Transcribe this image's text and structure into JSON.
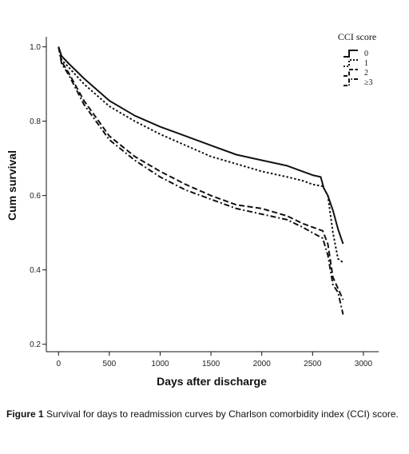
{
  "chart_data": {
    "type": "line",
    "xlabel": "Days after discharge",
    "ylabel": "Cum survival",
    "xlim": [
      -120,
      3150
    ],
    "ylim": [
      0.18,
      1.04
    ],
    "xticks": [
      0,
      500,
      1000,
      1500,
      2000,
      2500,
      3000
    ],
    "yticks": [
      0.2,
      0.4,
      0.6,
      0.8,
      1.0
    ],
    "xtick_labels": [
      "0",
      "500",
      "1000",
      "1500",
      "2000",
      "2500",
      "3000"
    ],
    "ytick_labels": [
      "0.2",
      "0.4",
      "0.6",
      "0.8",
      "1.0"
    ],
    "grid": false,
    "legend": {
      "title": "CCI score",
      "position": "top-right"
    },
    "series": [
      {
        "name": "0",
        "dash": "solid",
        "points": [
          [
            0,
            1.0
          ],
          [
            30,
            0.975
          ],
          [
            100,
            0.955
          ],
          [
            250,
            0.915
          ],
          [
            500,
            0.855
          ],
          [
            750,
            0.815
          ],
          [
            1000,
            0.785
          ],
          [
            1250,
            0.76
          ],
          [
            1500,
            0.735
          ],
          [
            1750,
            0.71
          ],
          [
            2000,
            0.695
          ],
          [
            2250,
            0.68
          ],
          [
            2400,
            0.665
          ],
          [
            2500,
            0.655
          ],
          [
            2580,
            0.65
          ],
          [
            2610,
            0.62
          ],
          [
            2650,
            0.6
          ],
          [
            2700,
            0.56
          ],
          [
            2750,
            0.51
          ],
          [
            2800,
            0.47
          ]
        ]
      },
      {
        "name": "1",
        "dash": "dotted",
        "points": [
          [
            0,
            1.0
          ],
          [
            30,
            0.965
          ],
          [
            100,
            0.945
          ],
          [
            250,
            0.9
          ],
          [
            500,
            0.84
          ],
          [
            750,
            0.8
          ],
          [
            1000,
            0.765
          ],
          [
            1250,
            0.735
          ],
          [
            1500,
            0.705
          ],
          [
            1750,
            0.685
          ],
          [
            2000,
            0.665
          ],
          [
            2250,
            0.65
          ],
          [
            2400,
            0.64
          ],
          [
            2500,
            0.63
          ],
          [
            2600,
            0.625
          ],
          [
            2650,
            0.6
          ],
          [
            2700,
            0.5
          ],
          [
            2750,
            0.43
          ],
          [
            2800,
            0.42
          ]
        ]
      },
      {
        "name": "2",
        "dash": "dashed",
        "points": [
          [
            0,
            1.0
          ],
          [
            30,
            0.96
          ],
          [
            100,
            0.93
          ],
          [
            250,
            0.855
          ],
          [
            500,
            0.76
          ],
          [
            750,
            0.705
          ],
          [
            1000,
            0.665
          ],
          [
            1250,
            0.63
          ],
          [
            1500,
            0.6
          ],
          [
            1750,
            0.575
          ],
          [
            2000,
            0.565
          ],
          [
            2250,
            0.545
          ],
          [
            2400,
            0.525
          ],
          [
            2500,
            0.515
          ],
          [
            2600,
            0.505
          ],
          [
            2650,
            0.47
          ],
          [
            2700,
            0.38
          ],
          [
            2750,
            0.35
          ],
          [
            2800,
            0.32
          ]
        ]
      },
      {
        "name": "≥3",
        "dash": "dashdot",
        "points": [
          [
            0,
            1.0
          ],
          [
            30,
            0.955
          ],
          [
            100,
            0.925
          ],
          [
            250,
            0.845
          ],
          [
            500,
            0.75
          ],
          [
            750,
            0.695
          ],
          [
            1000,
            0.65
          ],
          [
            1250,
            0.615
          ],
          [
            1500,
            0.59
          ],
          [
            1750,
            0.565
          ],
          [
            2000,
            0.55
          ],
          [
            2250,
            0.535
          ],
          [
            2400,
            0.515
          ],
          [
            2500,
            0.5
          ],
          [
            2600,
            0.485
          ],
          [
            2650,
            0.44
          ],
          [
            2700,
            0.36
          ],
          [
            2750,
            0.34
          ],
          [
            2800,
            0.28
          ]
        ]
      }
    ]
  },
  "caption": {
    "label": "Figure 1",
    "text": " Survival for days to readmission curves by Charlson comorbidity index (CCI) score."
  }
}
